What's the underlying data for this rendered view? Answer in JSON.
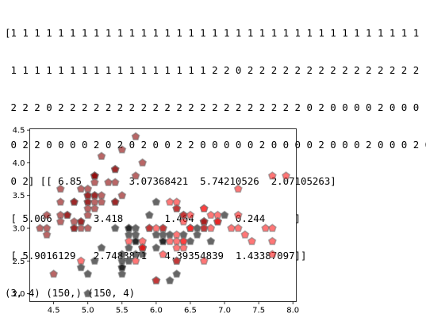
{
  "console": {
    "lines": [
      "[1 1 1 1 1 1 1 1 1 1 1 1 1 1 1 1 1 1 1 1 1 1 1 1 1 1 1 1 1 1 1 1 1 1 1",
      " 1 1 1 1 1 1 1 1 1 1 1 1 1 1 1 1 1 2 2 0 2 2 2 2 2 2 2 2 2 2 2 2 2 2 2",
      " 2 2 2 0 2 2 2 2 2 2 2 2 2 2 2 2 2 2 2 2 2 2 2 2 2 0 2 0 0 0 0 2 0 0 0",
      " 0 2 2 0 0 0 0 2 0 2 0 2 0 0 2 2 0 0 0 0 0 2 0 0 0 0 2 0 0 0 2 0 0 0 2 0",
      " 0 2] [[ 6.85        3.07368421  5.74210526  2.07105263]",
      " [ 5.006       3.418       1.464       0.244     ]",
      " [ 5.9016129   2.7483871   4.39354839  1.43387097]]",
      "(3, 4) (150,) (150, 4)"
    ]
  },
  "chart_data": {
    "type": "scatter",
    "xlim": [
      4.15,
      8.05
    ],
    "ylim": [
      1.88,
      4.52
    ],
    "x_ticks": [
      4.5,
      5.0,
      5.5,
      6.0,
      6.5,
      7.0,
      7.5,
      8.0
    ],
    "x_tick_labels": [
      "4.5",
      "5.0",
      "5.5",
      "6.0",
      "6.5",
      "7.0",
      "7.5",
      "8.0"
    ],
    "y_ticks": [
      2.0,
      2.5,
      3.0,
      3.5,
      4.0,
      4.5
    ],
    "y_tick_labels": [
      "2.0",
      "2.5",
      "3.0",
      "3.5",
      "4.0",
      "4.5"
    ],
    "marker": "pentagon",
    "grid": false,
    "series": [
      {
        "color": "#8b0000",
        "x": [
          5.1,
          4.9,
          4.7,
          4.6,
          5.0,
          5.4,
          4.6,
          5.0,
          4.4,
          4.9,
          5.4,
          4.8,
          4.8,
          4.3,
          5.8,
          5.7,
          5.4,
          5.1,
          5.7,
          5.1,
          5.4,
          5.1,
          4.6,
          5.1,
          4.8,
          5.0,
          5.0,
          5.2,
          5.2,
          4.7,
          4.8,
          5.4,
          5.2,
          5.5,
          4.9,
          5.0,
          5.5,
          4.9,
          4.4,
          5.1,
          5.0,
          4.5,
          4.4,
          5.0,
          5.1,
          4.8,
          5.1,
          4.6,
          5.3,
          5.0
        ],
        "y": [
          3.5,
          3.0,
          3.2,
          3.1,
          3.6,
          3.9,
          3.4,
          3.4,
          2.9,
          3.1,
          3.7,
          3.4,
          3.0,
          3.0,
          4.0,
          4.4,
          3.9,
          3.5,
          3.8,
          3.8,
          3.4,
          3.7,
          3.6,
          3.3,
          3.4,
          3.0,
          3.4,
          3.5,
          3.4,
          3.2,
          3.1,
          3.4,
          4.1,
          4.2,
          3.1,
          3.2,
          3.5,
          3.6,
          3.0,
          3.4,
          3.5,
          2.3,
          3.2,
          3.5,
          3.8,
          3.0,
          3.8,
          3.2,
          3.7,
          3.3
        ]
      },
      {
        "color": "#000000",
        "x": [
          7.0,
          6.4,
          6.9,
          5.5,
          6.5,
          5.7,
          6.3,
          4.9,
          6.6,
          5.2,
          5.0,
          5.9,
          6.0,
          6.1,
          5.6,
          6.7,
          5.6,
          5.8,
          6.2,
          5.6,
          5.9,
          6.1,
          6.3,
          6.1,
          6.4,
          6.6,
          6.8,
          6.7,
          6.0,
          5.7,
          5.5,
          5.5,
          5.8,
          6.0,
          5.4,
          6.0,
          6.7,
          6.3,
          5.6,
          5.5,
          5.5,
          6.1,
          5.8,
          5.0,
          5.6,
          5.7,
          5.7,
          6.2,
          5.1,
          5.7
        ],
        "y": [
          3.2,
          3.2,
          3.1,
          2.3,
          2.8,
          2.8,
          3.3,
          2.4,
          2.9,
          2.7,
          2.0,
          3.0,
          2.2,
          2.9,
          2.9,
          3.1,
          3.0,
          2.7,
          2.2,
          2.5,
          3.2,
          2.8,
          2.5,
          2.8,
          2.9,
          3.0,
          2.8,
          3.0,
          2.9,
          2.6,
          2.4,
          2.4,
          2.7,
          2.7,
          3.0,
          3.4,
          3.1,
          2.3,
          3.0,
          2.5,
          2.6,
          3.0,
          2.6,
          2.3,
          2.7,
          3.0,
          2.9,
          2.9,
          2.5,
          2.8
        ]
      },
      {
        "color": "#ff1a1a",
        "x": [
          6.3,
          5.8,
          7.1,
          6.3,
          6.5,
          7.6,
          4.9,
          7.3,
          6.7,
          7.2,
          6.5,
          6.4,
          6.8,
          5.7,
          5.8,
          6.4,
          6.5,
          7.7,
          7.7,
          6.0,
          6.9,
          5.6,
          7.7,
          6.3,
          6.7,
          7.2,
          6.2,
          6.1,
          6.4,
          7.2,
          7.4,
          7.9,
          6.4,
          6.3,
          6.1,
          7.7,
          6.3,
          6.4,
          6.0,
          6.9,
          6.7,
          6.9,
          5.8,
          6.8,
          6.7,
          6.7,
          6.3,
          6.5,
          6.2,
          5.9
        ],
        "y": [
          3.3,
          2.7,
          3.0,
          2.9,
          3.0,
          3.0,
          2.5,
          2.9,
          2.5,
          3.6,
          3.2,
          2.7,
          3.0,
          2.5,
          2.8,
          3.2,
          3.0,
          3.8,
          2.6,
          2.2,
          3.2,
          2.8,
          2.8,
          2.7,
          3.3,
          3.2,
          2.8,
          3.0,
          2.8,
          3.0,
          2.8,
          3.8,
          2.8,
          2.8,
          2.6,
          3.0,
          3.4,
          3.1,
          3.0,
          3.1,
          3.1,
          3.1,
          2.7,
          3.2,
          3.3,
          3.0,
          2.5,
          3.0,
          3.4,
          3.0
        ]
      }
    ]
  }
}
